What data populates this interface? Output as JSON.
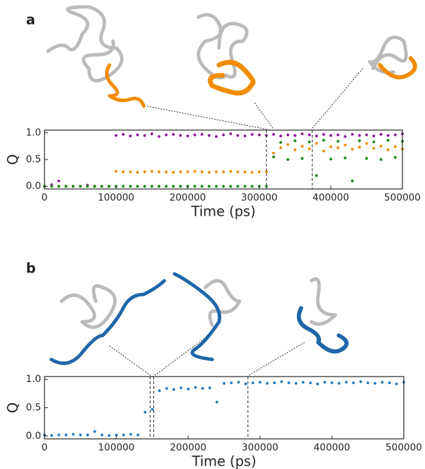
{
  "chart_data": [
    {
      "type": "scatter",
      "panel_label": "a",
      "x_label": "Time (ps)",
      "y_label": "Q",
      "xlim": [
        0,
        500000
      ],
      "ylim": [
        -0.05,
        1.05
      ],
      "xticks": [
        0,
        100000,
        200000,
        300000,
        400000,
        500000
      ],
      "yticks": [
        {
          "value": 0,
          "label": "0.0"
        },
        {
          "value": 0.5,
          "label": "0.5"
        },
        {
          "value": 1,
          "label": "1.0"
        }
      ],
      "markers": [
        310000,
        374000
      ],
      "x": [
        0,
        10000,
        20000,
        30000,
        40000,
        50000,
        60000,
        70000,
        80000,
        90000,
        100000,
        110000,
        120000,
        130000,
        140000,
        150000,
        160000,
        170000,
        180000,
        190000,
        200000,
        210000,
        220000,
        230000,
        240000,
        250000,
        260000,
        270000,
        280000,
        290000,
        300000,
        310000,
        320000,
        330000,
        340000,
        350000,
        360000,
        370000,
        380000,
        390000,
        400000,
        410000,
        420000,
        430000,
        440000,
        450000,
        460000,
        470000,
        480000,
        490000,
        500000
      ],
      "series": [
        {
          "color": "#8b1a9a",
          "values": [
            0.0,
            0.03,
            0.1,
            0.0,
            0.0,
            0.0,
            0.02,
            0.0,
            0.0,
            0.0,
            0.95,
            0.97,
            0.94,
            0.96,
            0.95,
            0.98,
            0.93,
            0.96,
            0.97,
            0.95,
            0.94,
            0.96,
            0.97,
            0.95,
            0.93,
            0.96,
            0.98,
            0.95,
            0.94,
            0.97,
            0.96,
            0.95,
            0.97,
            0.94,
            0.96,
            0.95,
            0.98,
            0.96,
            0.94,
            0.97,
            0.95,
            0.96,
            0.93,
            0.97,
            0.95,
            0.96,
            0.94,
            0.97,
            0.95,
            0.96,
            0.98
          ]
        },
        {
          "color": "#f28c00",
          "values": [
            0.0,
            0.0,
            0.0,
            0.0,
            0.0,
            0.0,
            0.0,
            0.0,
            0.0,
            0.0,
            0.28,
            0.27,
            0.27,
            0.26,
            0.27,
            0.28,
            0.27,
            0.27,
            0.26,
            0.27,
            0.27,
            0.28,
            0.27,
            0.26,
            0.27,
            0.27,
            0.28,
            0.27,
            0.27,
            0.26,
            0.27,
            0.27,
            0.62,
            0.72,
            0.78,
            0.68,
            0.75,
            0.7,
            0.8,
            0.66,
            0.74,
            0.72,
            0.77,
            0.69,
            0.73,
            0.8,
            0.71,
            0.75,
            0.68,
            0.74,
            0.7
          ]
        },
        {
          "color": "#1a8a1a",
          "values": [
            0.0,
            0.0,
            0.0,
            0.0,
            0.0,
            0.0,
            0.0,
            0.0,
            0.0,
            0.0,
            0.0,
            0.0,
            0.0,
            0.0,
            0.0,
            0.0,
            0.0,
            0.0,
            0.0,
            0.0,
            0.0,
            0.0,
            0.0,
            0.0,
            0.0,
            0.0,
            0.0,
            0.0,
            0.0,
            0.0,
            0.0,
            0.0,
            0.55,
            0.82,
            0.5,
            0.85,
            0.52,
            0.83,
            0.2,
            0.86,
            0.51,
            0.84,
            0.53,
            0.1,
            0.85,
            0.52,
            0.83,
            0.5,
            0.86,
            0.54,
            0.84
          ]
        }
      ]
    },
    {
      "type": "scatter",
      "panel_label": "b",
      "x_label": "Time (ps)",
      "y_label": "Q",
      "xlim": [
        0,
        500000
      ],
      "ylim": [
        -0.05,
        1.05
      ],
      "xticks": [
        0,
        100000,
        200000,
        300000,
        400000,
        500000
      ],
      "yticks": [
        {
          "value": 0,
          "label": "0.0"
        },
        {
          "value": 0.5,
          "label": "0.5"
        },
        {
          "value": 1,
          "label": "1.0"
        }
      ],
      "markers": [
        147000,
        152000,
        283000
      ],
      "x": [
        0,
        10000,
        20000,
        30000,
        40000,
        50000,
        60000,
        70000,
        80000,
        90000,
        100000,
        110000,
        120000,
        130000,
        140000,
        150000,
        160000,
        170000,
        180000,
        190000,
        200000,
        210000,
        220000,
        230000,
        240000,
        250000,
        260000,
        270000,
        280000,
        290000,
        300000,
        310000,
        320000,
        330000,
        340000,
        350000,
        360000,
        370000,
        380000,
        390000,
        400000,
        410000,
        420000,
        430000,
        440000,
        450000,
        460000,
        470000,
        480000,
        490000,
        500000
      ],
      "series": [
        {
          "color": "#2a7bbf",
          "values": [
            0.02,
            0.01,
            0.02,
            0.02,
            0.03,
            0.02,
            0.02,
            0.08,
            0.02,
            0.01,
            0.02,
            0.02,
            0.03,
            0.02,
            0.42,
            0.47,
            0.8,
            0.84,
            0.82,
            0.85,
            0.83,
            0.86,
            0.84,
            0.85,
            0.6,
            0.93,
            0.94,
            0.95,
            0.92,
            0.94,
            0.95,
            0.93,
            0.94,
            0.96,
            0.94,
            0.93,
            0.95,
            0.94,
            0.92,
            0.95,
            0.94,
            0.93,
            0.95,
            0.94,
            0.96,
            0.94,
            0.93,
            0.95,
            0.94,
            0.92,
            0.95
          ]
        }
      ]
    }
  ]
}
